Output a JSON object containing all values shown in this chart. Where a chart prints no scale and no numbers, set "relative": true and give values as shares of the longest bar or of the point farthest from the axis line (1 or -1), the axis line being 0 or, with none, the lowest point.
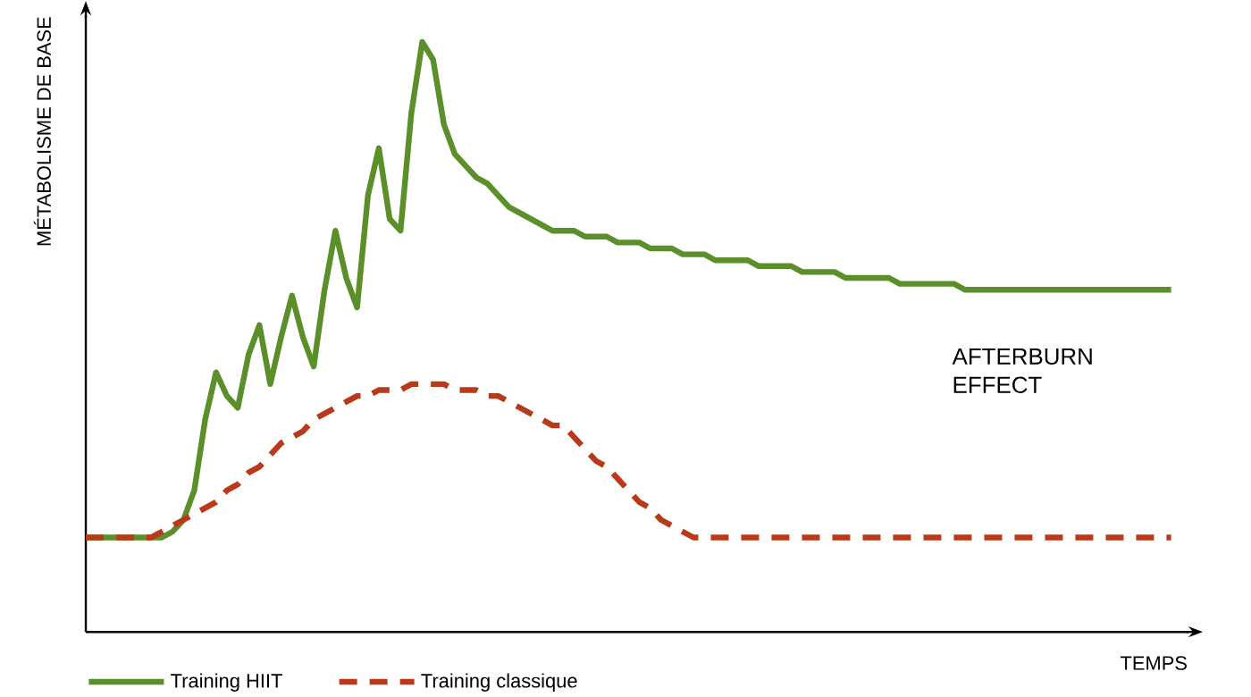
{
  "chart_data": {
    "type": "line",
    "relative": true,
    "xlabel": "TEMPS",
    "ylabel": "MÉTABOLISME DE BASE",
    "tick_labels": false,
    "legend": "bottom left",
    "marker": "none",
    "annotations": [
      "AFTERBURN EFFECT"
    ],
    "categories": [
      null,
      null,
      null,
      null,
      null,
      null,
      null,
      null,
      null,
      null,
      null,
      null,
      null,
      null,
      null,
      null,
      null,
      null,
      null,
      null,
      null,
      null,
      null,
      null,
      null,
      null,
      null,
      null,
      null,
      null,
      null,
      null,
      null,
      null,
      null,
      null,
      null,
      null,
      null,
      null,
      null,
      null,
      null,
      null,
      null,
      null,
      null,
      null,
      null,
      null,
      null,
      null,
      null,
      null,
      null,
      null,
      null,
      null,
      null,
      null,
      null,
      null,
      null,
      null,
      null,
      null,
      null,
      null,
      null,
      null,
      null,
      null,
      null,
      null,
      null,
      null,
      null,
      null,
      null,
      null,
      null,
      null,
      null,
      null,
      null,
      null,
      null,
      null,
      null,
      null,
      null,
      null,
      null,
      null,
      null,
      null,
      null,
      null,
      null,
      null,
      null
    ],
    "series": [
      {
        "name": "Training HIIT",
        "color": "#5a8f29",
        "line_style": "solid",
        "values": [
          0.16,
          0.16,
          0.16,
          0.16,
          0.16,
          0.16,
          0.16,
          0.16,
          0.17,
          0.19,
          0.24,
          0.36,
          0.44,
          0.4,
          0.38,
          0.47,
          0.52,
          0.42,
          0.5,
          0.57,
          0.5,
          0.45,
          0.58,
          0.68,
          0.6,
          0.55,
          0.74,
          0.82,
          0.7,
          0.68,
          0.88,
          1,
          0.97,
          0.86,
          0.81,
          0.79,
          0.77,
          0.76,
          0.74,
          0.72,
          0.71,
          0.7,
          0.69,
          0.68,
          0.68,
          0.68,
          0.67,
          0.67,
          0.67,
          0.66,
          0.66,
          0.66,
          0.65,
          0.65,
          0.65,
          0.64,
          0.64,
          0.64,
          0.63,
          0.63,
          0.63,
          0.63,
          0.62,
          0.62,
          0.62,
          0.62,
          0.61,
          0.61,
          0.61,
          0.61,
          0.6,
          0.6,
          0.6,
          0.6,
          0.6,
          0.59,
          0.59,
          0.59,
          0.59,
          0.59,
          0.59,
          0.58,
          0.58,
          0.58,
          0.58,
          0.58,
          0.58,
          0.58,
          0.58,
          0.58,
          0.58,
          0.58,
          0.58,
          0.58,
          0.58,
          0.58,
          0.58,
          0.58,
          0.58,
          0.58,
          0.58
        ]
      },
      {
        "name": "Training classique",
        "color": "#b83a1a",
        "line_style": "dashed",
        "values": [
          0.16,
          0.16,
          0.16,
          0.16,
          0.16,
          0.16,
          0.16,
          0.17,
          0.18,
          0.19,
          0.2,
          0.21,
          0.22,
          0.24,
          0.25,
          0.27,
          0.28,
          0.3,
          0.32,
          0.33,
          0.34,
          0.36,
          0.37,
          0.38,
          0.39,
          0.4,
          0.4,
          0.41,
          0.41,
          0.41,
          0.42,
          0.42,
          0.42,
          0.42,
          0.41,
          0.41,
          0.41,
          0.4,
          0.4,
          0.39,
          0.38,
          0.37,
          0.36,
          0.35,
          0.35,
          0.33,
          0.31,
          0.29,
          0.28,
          0.26,
          0.24,
          0.22,
          0.21,
          0.19,
          0.18,
          0.17,
          0.16,
          0.16,
          0.16,
          0.16,
          0.16,
          0.16,
          0.16,
          0.16,
          0.16,
          0.16,
          0.16,
          0.16,
          0.16,
          0.16,
          0.16,
          0.16,
          0.16,
          0.16,
          0.16,
          0.16,
          0.16,
          0.16,
          0.16,
          0.16,
          0.16,
          0.16,
          0.16,
          0.16,
          0.16,
          0.16,
          0.16,
          0.16,
          0.16,
          0.16,
          0.16,
          0.16,
          0.16,
          0.16,
          0.16,
          0.16,
          0.16,
          0.16,
          0.16,
          0.16,
          0.16
        ]
      }
    ]
  }
}
